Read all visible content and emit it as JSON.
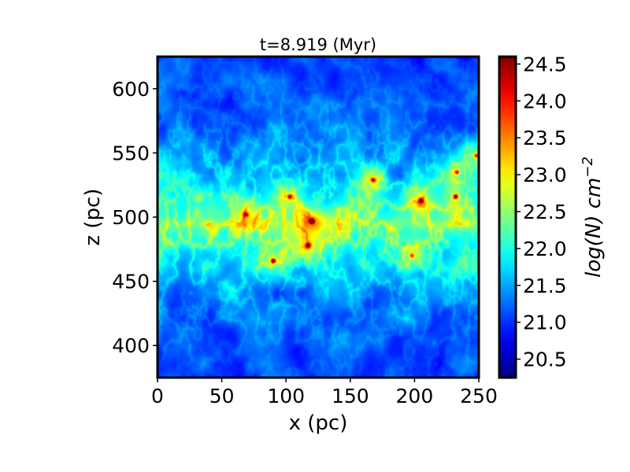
{
  "chart_data": {
    "type": "heatmap",
    "title": "t=8.919 (Myr)",
    "xlabel": "x (pc)",
    "ylabel": "z (pc)",
    "xlim": [
      0,
      250
    ],
    "ylim": [
      375,
      625
    ],
    "xticks": [
      0,
      50,
      100,
      150,
      200,
      250
    ],
    "yticks": [
      400,
      450,
      500,
      550,
      600
    ],
    "colorbar": {
      "label": "log(N) cm−2",
      "label_base": "log(N) cm",
      "label_exp": "−2",
      "range": [
        20.25,
        24.6
      ],
      "ticks": [
        20.5,
        21.0,
        21.5,
        22.0,
        22.5,
        23.0,
        23.5,
        24.0,
        24.5
      ],
      "colormap": "jet"
    },
    "field": {
      "description_values": "log column density",
      "background_level": 20.6,
      "filament_spine_z": 495,
      "hotspots": [
        {
          "x": 120,
          "z": 497,
          "value": 24.5
        },
        {
          "x": 90,
          "z": 466,
          "value": 23.8
        },
        {
          "x": 117,
          "z": 478,
          "value": 23.6
        },
        {
          "x": 103,
          "z": 516,
          "value": 23.4
        },
        {
          "x": 205,
          "z": 513,
          "value": 23.8
        },
        {
          "x": 232,
          "z": 516,
          "value": 24.1
        },
        {
          "x": 233,
          "z": 535,
          "value": 23.5
        },
        {
          "x": 69,
          "z": 502,
          "value": 23.1
        },
        {
          "x": 168,
          "z": 529,
          "value": 23.0
        },
        {
          "x": 198,
          "z": 470,
          "value": 23.0
        },
        {
          "x": 248,
          "z": 548,
          "value": 23.2
        }
      ]
    }
  }
}
